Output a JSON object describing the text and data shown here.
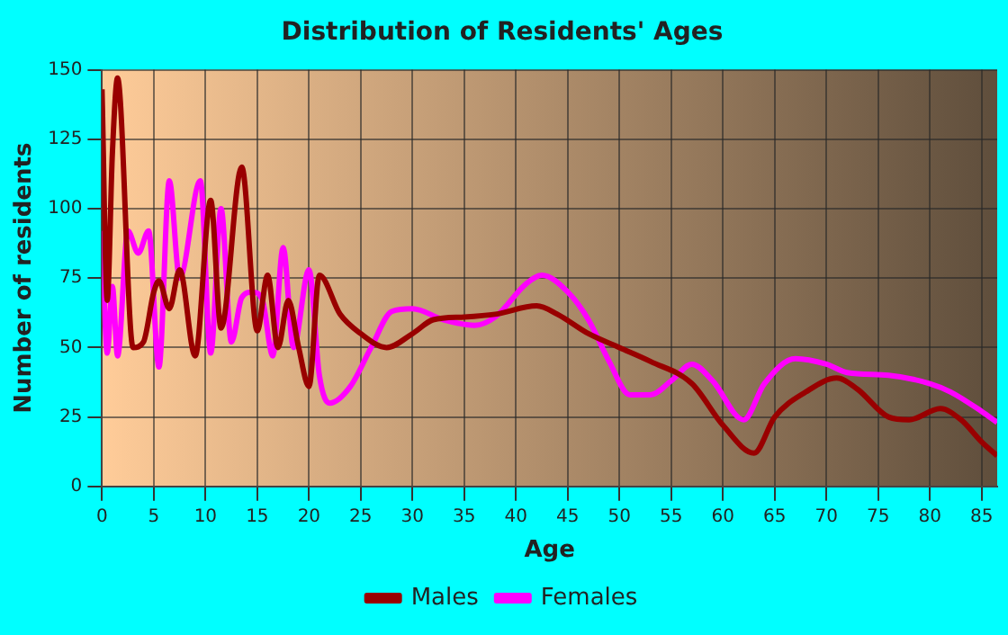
{
  "chart_data": {
    "type": "line",
    "title": "Distribution of Residents' Ages",
    "xlabel": "Age",
    "ylabel": "Number of residents",
    "xlim": [
      0,
      86.5
    ],
    "xticks": [
      0,
      5,
      10,
      15,
      20,
      25,
      30,
      35,
      40,
      45,
      50,
      55,
      60,
      65,
      70,
      75,
      80,
      85
    ],
    "ylim": [
      0,
      150
    ],
    "yticks": [
      0,
      25,
      50,
      75,
      100,
      125,
      150
    ],
    "grid": true,
    "legend": "bottom",
    "marker": "none",
    "line_style": "solid",
    "series": [
      {
        "name": "Males",
        "color": "#990000",
        "x": [
          0,
          0.5,
          1,
          1.5,
          3,
          4,
          5,
          5.5,
          6.5,
          7.5,
          9,
          10.5,
          11.5,
          13.5,
          15,
          16,
          17,
          18,
          19,
          20,
          21,
          23,
          25,
          27.5,
          30,
          32,
          35,
          38,
          42,
          44,
          47,
          50,
          53,
          57,
          60,
          63,
          65,
          68,
          71,
          73,
          76,
          78,
          81,
          83,
          85,
          86.5
        ],
        "values": [
          143,
          67,
          120,
          147,
          50,
          52,
          70,
          74,
          64,
          78,
          47,
          103,
          57,
          115,
          56,
          76,
          50,
          67,
          50,
          36,
          76,
          62,
          55,
          50,
          55,
          60,
          61,
          62,
          65,
          62,
          55,
          50,
          45,
          37,
          22,
          12,
          25,
          34,
          39,
          35,
          25,
          24,
          28,
          24,
          16,
          11
        ]
      },
      {
        "name": "Females",
        "color": "#ff00ff",
        "x": [
          0,
          0.5,
          1,
          1.5,
          2.5,
          3.5,
          4.5,
          5.5,
          6.5,
          7.5,
          9.5,
          10.5,
          11.5,
          12.5,
          13.5,
          14.5,
          15.5,
          16.5,
          17.5,
          18.5,
          20,
          21,
          22,
          24,
          26,
          28,
          30,
          33,
          36,
          38,
          41,
          42.5,
          45,
          47,
          49,
          51,
          53,
          55,
          57,
          59,
          62,
          64,
          67,
          70,
          72,
          76,
          80,
          82,
          85,
          86.5
        ],
        "values": [
          92,
          48,
          72,
          47,
          92,
          84,
          92,
          43,
          110,
          75,
          110,
          48,
          100,
          52,
          68,
          70,
          67,
          47,
          86,
          50,
          78,
          40,
          30,
          36,
          50,
          63,
          64,
          60,
          58,
          61,
          73,
          76,
          70,
          60,
          45,
          33,
          33,
          38,
          44,
          38,
          24,
          37,
          46,
          44,
          41,
          40,
          37,
          34,
          27,
          23
        ]
      }
    ]
  }
}
